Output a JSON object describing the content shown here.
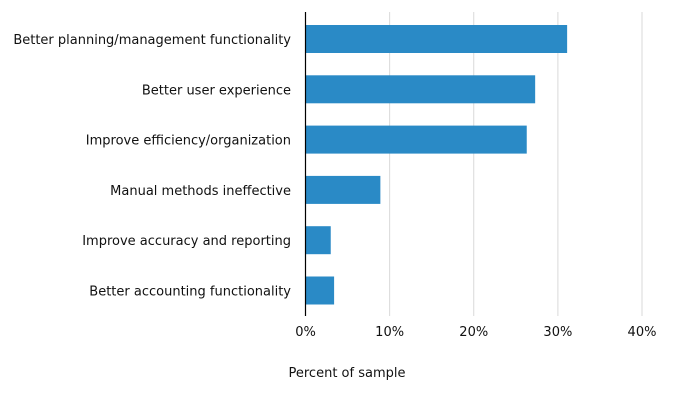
{
  "chart_data": {
    "type": "bar",
    "orientation": "horizontal",
    "title": "",
    "xlabel": "Percent of sample",
    "ylabel": "",
    "categories": [
      "Better planning/management functionality",
      "Better user experience",
      "Improve efficiency/organization",
      "Manual methods ineffective",
      "Improve accuracy and reporting",
      "Better accounting functionality"
    ],
    "values": [
      31.1,
      27.3,
      26.3,
      8.9,
      3.0,
      3.4
    ],
    "xlim": [
      0,
      40
    ],
    "ticks": [
      0,
      10,
      20,
      30,
      40
    ],
    "tick_labels": [
      "0%",
      "10%",
      "20%",
      "30%",
      "40%"
    ],
    "grid": true,
    "bar_color": "#2a8ac6",
    "grid_color": "#d9d9d9",
    "axis_color": "#000000"
  }
}
